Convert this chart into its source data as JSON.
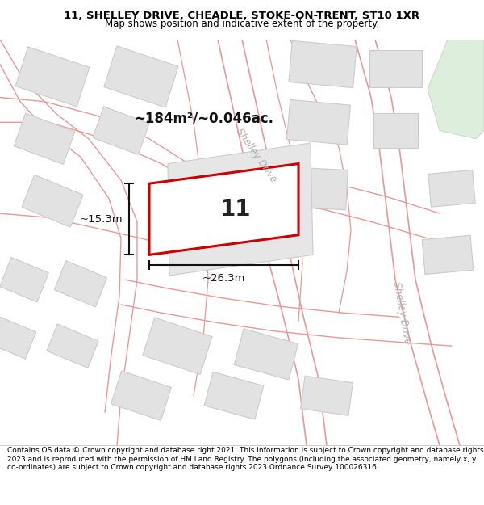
{
  "title_line1": "11, SHELLEY DRIVE, CHEADLE, STOKE-ON-TRENT, ST10 1XR",
  "title_line2": "Map shows position and indicative extent of the property.",
  "footer_text": "Contains OS data © Crown copyright and database right 2021. This information is subject to Crown copyright and database rights 2023 and is reproduced with the permission of HM Land Registry. The polygons (including the associated geometry, namely x, y co-ordinates) are subject to Crown copyright and database rights 2023 Ordnance Survey 100026316.",
  "map_bg": "#ffffff",
  "road_color": "#f0b8b8",
  "road_edge_color": "#e89898",
  "block_fill": "#e2e2e2",
  "block_edge": "#cccccc",
  "green_fill": "#ddeedd",
  "green_edge": "#c8d8c8",
  "subject_fill": "#ffffff",
  "subject_edge": "#cc0000",
  "dim_color": "#111111",
  "road_label_color": "#b0b0b0",
  "area_text": "~184m²/~0.046ac.",
  "width_text": "~26.3m",
  "height_text": "~15.3m",
  "number_text": "11",
  "road_label_top": "Shelley Drive",
  "road_label_bot": "Shelley Drive",
  "title_fontsize": 9.5,
  "subtitle_fontsize": 8.5,
  "footer_fontsize": 6.5
}
